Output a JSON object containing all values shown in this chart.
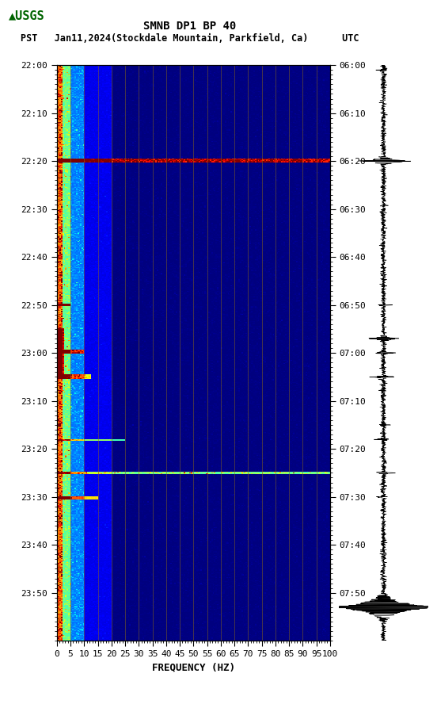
{
  "title_line1": "SMNB DP1 BP 40",
  "title_line2": "PST   Jan11,2024(Stockdale Mountain, Parkfield, Ca)      UTC",
  "xlabel": "FREQUENCY (HZ)",
  "freq_ticks": [
    0,
    5,
    10,
    15,
    20,
    25,
    30,
    35,
    40,
    45,
    50,
    55,
    60,
    65,
    70,
    75,
    80,
    85,
    90,
    95,
    100
  ],
  "left_time_labels": [
    "22:00",
    "22:10",
    "22:20",
    "22:30",
    "22:40",
    "22:50",
    "23:00",
    "23:10",
    "23:20",
    "23:30",
    "23:40",
    "23:50"
  ],
  "right_time_labels": [
    "06:00",
    "06:10",
    "06:20",
    "06:30",
    "06:40",
    "06:50",
    "07:00",
    "07:10",
    "07:20",
    "07:30",
    "07:40",
    "07:50"
  ],
  "time_minutes": [
    0,
    10,
    20,
    30,
    40,
    50,
    60,
    70,
    80,
    90,
    100,
    110
  ],
  "total_minutes": 120,
  "freq_min": 0,
  "freq_max": 100,
  "background_color": "#ffffff",
  "spectrogram_bg": "#000080",
  "colormap": "jet",
  "grid_color": "#8B6914",
  "title_fontsize": 10,
  "label_fontsize": 9,
  "tick_fontsize": 8
}
